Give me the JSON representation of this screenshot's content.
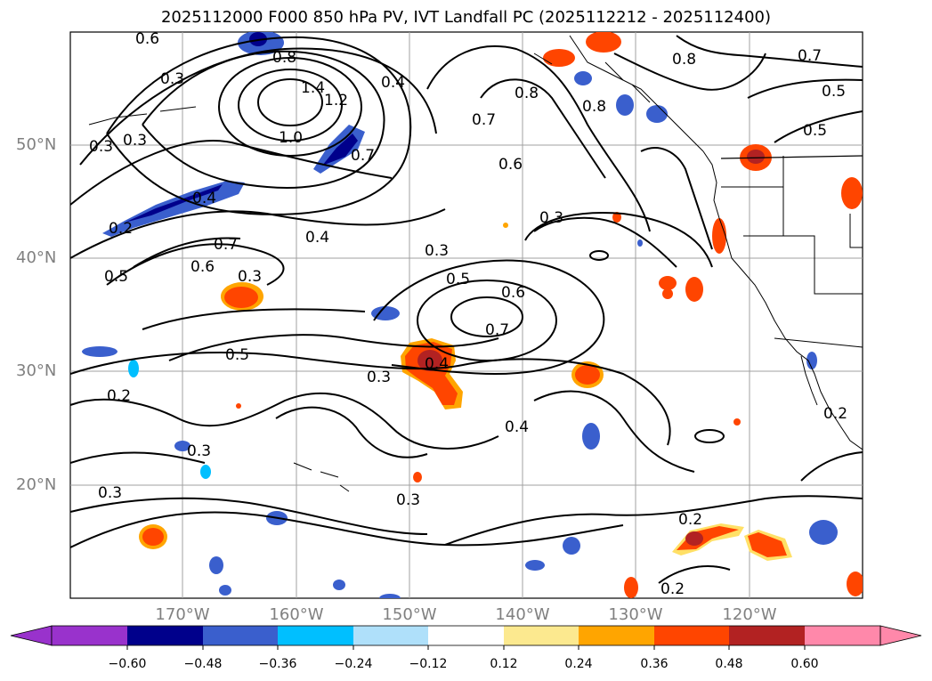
{
  "title": "2025112000 F000 850 hPa PV, IVT Landfall PC (2025112212 - 2025112400)",
  "map": {
    "lat_labels": [
      "50°N",
      "40°N",
      "30°N",
      "20°N"
    ],
    "lon_labels": [
      "170°W",
      "160°W",
      "150°W",
      "140°W",
      "130°W",
      "120°W"
    ],
    "contour_labels": [
      "0.6",
      "0.3",
      "0.8",
      "1.4",
      "1.2",
      "0.4",
      "1.0",
      "0.7",
      "0.3",
      "0.3",
      "0.4",
      "0.2",
      "0.5",
      "0.7",
      "0.6",
      "0.3",
      "0.4",
      "0.3",
      "0.5",
      "0.6",
      "0.7",
      "0.5",
      "0.4",
      "0.3",
      "0.2",
      "0.3",
      "0.3",
      "0.4",
      "0.3",
      "0.2",
      "0.2",
      "0.8",
      "0.7",
      "0.5",
      "0.5",
      "0.7",
      "0.6",
      "0.3",
      "0.8",
      "0.8",
      "0.2"
    ]
  },
  "colorbar": {
    "ticks": [
      "−0.60",
      "−0.48",
      "−0.36",
      "−0.24",
      "−0.12",
      "0.12",
      "0.24",
      "0.36",
      "0.48",
      "0.60"
    ],
    "colors": [
      "#9932cc",
      "#00008b",
      "#3a5fcd",
      "#00bfff",
      "#afe0fa",
      "#ffffff",
      "#fce98f",
      "#ffa500",
      "#ff4500",
      "#b22222",
      "#ff88aa"
    ]
  }
}
